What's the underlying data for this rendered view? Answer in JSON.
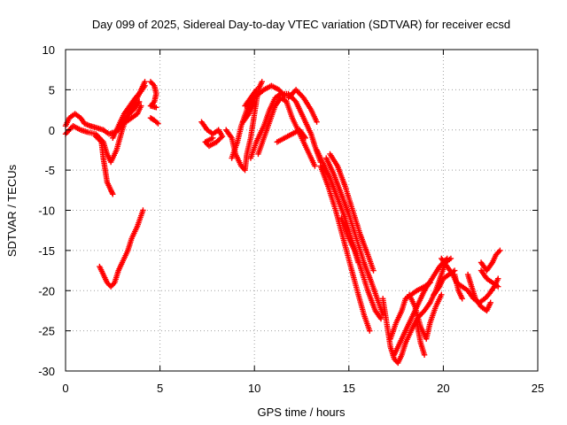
{
  "chart_data": {
    "type": "scatter",
    "title": "Day 099 of 2025, Sidereal Day-to-day VTEC variation (SDTVAR) for receiver ecsd",
    "xlabel": "GPS time / hours",
    "ylabel": "SDTVAR / TECUs",
    "xlim": [
      0,
      25
    ],
    "ylim": [
      -30,
      10
    ],
    "xticks": [
      0,
      5,
      10,
      15,
      20,
      25
    ],
    "yticks": [
      -30,
      -25,
      -20,
      -15,
      -10,
      -5,
      0,
      5,
      10
    ],
    "grid": true,
    "marker": "+",
    "color": "#ff0000",
    "tracks": [
      [
        [
          0.0,
          0.5
        ],
        [
          0.2,
          1.5
        ],
        [
          0.5,
          2.0
        ],
        [
          0.8,
          1.5
        ],
        [
          1.0,
          0.8
        ],
        [
          1.3,
          0.5
        ],
        [
          1.6,
          0.3
        ],
        [
          2.0,
          0.0
        ],
        [
          2.3,
          -0.5
        ],
        [
          2.6,
          -0.3
        ],
        [
          3.0,
          0.5
        ]
      ],
      [
        [
          0.0,
          -0.5
        ],
        [
          0.4,
          0.5
        ],
        [
          0.8,
          0.0
        ],
        [
          1.2,
          -0.3
        ],
        [
          1.6,
          -0.5
        ],
        [
          2.0,
          -1.5
        ],
        [
          2.2,
          -3.0
        ],
        [
          2.4,
          -4.0
        ],
        [
          2.7,
          -2.5
        ],
        [
          3.0,
          0.0
        ],
        [
          3.3,
          2.0
        ],
        [
          3.7,
          3.5
        ],
        [
          4.0,
          5.0
        ],
        [
          4.2,
          6.0
        ]
      ],
      [
        [
          1.6,
          -0.8
        ],
        [
          1.9,
          -1.5
        ],
        [
          2.0,
          -3.5
        ],
        [
          2.1,
          -5.0
        ],
        [
          2.2,
          -6.5
        ],
        [
          2.4,
          -7.5
        ],
        [
          2.5,
          -8.0
        ]
      ],
      [
        [
          2.5,
          -1.0
        ],
        [
          2.8,
          0.5
        ],
        [
          3.1,
          2.0
        ],
        [
          3.4,
          3.0
        ],
        [
          3.7,
          4.0
        ],
        [
          4.0,
          4.8
        ],
        [
          4.2,
          5.5
        ]
      ],
      [
        [
          2.8,
          0.0
        ],
        [
          3.0,
          1.0
        ],
        [
          3.3,
          1.8
        ],
        [
          3.6,
          2.5
        ],
        [
          3.9,
          3.5
        ]
      ],
      [
        [
          3.2,
          1.0
        ],
        [
          3.5,
          1.5
        ],
        [
          3.8,
          2.0
        ],
        [
          4.0,
          3.0
        ]
      ],
      [
        [
          1.8,
          -17.0
        ],
        [
          2.0,
          -18.0
        ],
        [
          2.2,
          -19.0
        ],
        [
          2.4,
          -19.5
        ],
        [
          2.6,
          -19.0
        ],
        [
          2.8,
          -17.5
        ],
        [
          3.0,
          -16.5
        ],
        [
          3.3,
          -15.0
        ],
        [
          3.5,
          -13.5
        ],
        [
          3.8,
          -12.0
        ],
        [
          4.1,
          -10.0
        ]
      ],
      [
        [
          4.5,
          6.0
        ],
        [
          4.7,
          5.5
        ],
        [
          4.8,
          4.5
        ],
        [
          4.7,
          3.5
        ],
        [
          4.5,
          3.0
        ],
        [
          4.8,
          2.8
        ]
      ],
      [
        [
          4.5,
          1.5
        ],
        [
          4.7,
          1.2
        ],
        [
          4.9,
          0.8
        ]
      ],
      [
        [
          7.2,
          1.0
        ],
        [
          7.5,
          0.0
        ],
        [
          7.8,
          -0.5
        ],
        [
          8.1,
          0.0
        ],
        [
          8.3,
          -0.8
        ],
        [
          8.0,
          -1.5
        ],
        [
          7.6,
          -2.0
        ],
        [
          7.4,
          -1.5
        ],
        [
          7.8,
          -1.0
        ]
      ],
      [
        [
          8.5,
          0.0
        ],
        [
          8.8,
          -1.0
        ],
        [
          9.0,
          -3.0
        ],
        [
          9.3,
          -4.5
        ],
        [
          9.5,
          -5.0
        ],
        [
          9.6,
          -3.0
        ],
        [
          9.8,
          -1.0
        ],
        [
          10.0,
          2.0
        ],
        [
          10.2,
          5.0
        ],
        [
          10.4,
          6.0
        ]
      ],
      [
        [
          8.8,
          -3.5
        ],
        [
          9.1,
          -1.5
        ],
        [
          9.3,
          0.5
        ],
        [
          9.6,
          2.5
        ],
        [
          10.0,
          4.0
        ],
        [
          10.5,
          5.0
        ],
        [
          10.9,
          5.5
        ],
        [
          11.3,
          5.0
        ],
        [
          11.6,
          4.2
        ]
      ],
      [
        [
          9.5,
          3.0
        ],
        [
          9.8,
          4.0
        ],
        [
          10.1,
          5.0
        ]
      ],
      [
        [
          9.4,
          1.0
        ],
        [
          9.7,
          2.0
        ],
        [
          10.0,
          3.5
        ]
      ],
      [
        [
          9.8,
          -3.5
        ],
        [
          10.1,
          -1.5
        ],
        [
          10.5,
          0.5
        ],
        [
          10.8,
          2.5
        ],
        [
          11.1,
          4.0
        ],
        [
          11.4,
          4.5
        ],
        [
          11.8,
          4.5
        ],
        [
          12.2,
          3.5
        ],
        [
          12.6,
          1.5
        ],
        [
          13.0,
          -0.5
        ],
        [
          13.2,
          -2.0
        ],
        [
          13.5,
          -4.0
        ]
      ],
      [
        [
          10.2,
          -3.0
        ],
        [
          10.5,
          -1.0
        ],
        [
          10.8,
          1.0
        ],
        [
          11.1,
          3.0
        ],
        [
          11.4,
          4.0
        ],
        [
          11.7,
          3.5
        ],
        [
          12.0,
          1.5
        ],
        [
          12.3,
          0.0
        ],
        [
          12.6,
          -1.5
        ],
        [
          12.9,
          -3.0
        ],
        [
          13.2,
          -4.5
        ]
      ],
      [
        [
          11.2,
          -1.5
        ],
        [
          11.6,
          -1.0
        ],
        [
          12.0,
          -0.5
        ],
        [
          12.4,
          0.0
        ],
        [
          12.7,
          -1.0
        ]
      ],
      [
        [
          11.8,
          4.0
        ],
        [
          12.2,
          5.0
        ],
        [
          12.6,
          4.0
        ],
        [
          13.0,
          2.5
        ],
        [
          13.3,
          1.0
        ]
      ],
      [
        [
          13.3,
          -2.5
        ],
        [
          13.6,
          -4.0
        ],
        [
          14.0,
          -6.0
        ],
        [
          14.4,
          -8.5
        ],
        [
          14.8,
          -11.0
        ],
        [
          15.2,
          -14.0
        ],
        [
          15.6,
          -17.0
        ],
        [
          16.0,
          -20.0
        ],
        [
          16.4,
          -22.5
        ],
        [
          16.7,
          -23.5
        ]
      ],
      [
        [
          13.5,
          -4.5
        ],
        [
          13.9,
          -7.0
        ],
        [
          14.3,
          -10.0
        ],
        [
          14.7,
          -13.5
        ],
        [
          15.1,
          -17.0
        ],
        [
          15.5,
          -20.5
        ],
        [
          15.8,
          -23.0
        ],
        [
          16.1,
          -25.0
        ]
      ],
      [
        [
          13.8,
          -3.5
        ],
        [
          14.2,
          -5.5
        ],
        [
          14.6,
          -8.0
        ],
        [
          15.0,
          -10.5
        ],
        [
          15.4,
          -13.5
        ],
        [
          15.8,
          -16.5
        ],
        [
          16.2,
          -19.0
        ],
        [
          16.5,
          -21.0
        ],
        [
          16.8,
          -23.0
        ]
      ],
      [
        [
          14.0,
          -3.0
        ],
        [
          14.4,
          -4.5
        ],
        [
          14.8,
          -7.0
        ],
        [
          15.2,
          -10.0
        ],
        [
          15.6,
          -13.0
        ],
        [
          16.0,
          -15.5
        ],
        [
          16.3,
          -17.5
        ]
      ],
      [
        [
          14.6,
          -11.0
        ],
        [
          15.0,
          -13.5
        ],
        [
          15.3,
          -15.0
        ],
        [
          15.5,
          -16.5
        ]
      ],
      [
        [
          16.8,
          -21.0
        ],
        [
          17.0,
          -24.0
        ],
        [
          17.2,
          -27.0
        ],
        [
          17.4,
          -28.5
        ],
        [
          17.6,
          -29.0
        ],
        [
          17.8,
          -28.0
        ],
        [
          18.0,
          -26.5
        ],
        [
          18.3,
          -25.0
        ],
        [
          18.6,
          -23.5
        ],
        [
          19.0,
          -22.5
        ],
        [
          19.3,
          -21.5
        ],
        [
          19.6,
          -20.0
        ],
        [
          19.9,
          -18.0
        ],
        [
          20.1,
          -16.5
        ],
        [
          20.4,
          -16.0
        ]
      ],
      [
        [
          17.2,
          -26.0
        ],
        [
          17.5,
          -24.0
        ],
        [
          17.8,
          -22.5
        ],
        [
          18.0,
          -21.0
        ],
        [
          18.3,
          -20.5
        ],
        [
          18.6,
          -20.0
        ],
        [
          19.0,
          -19.5
        ],
        [
          19.3,
          -19.0
        ]
      ],
      [
        [
          17.4,
          -28.0
        ],
        [
          17.8,
          -26.0
        ],
        [
          18.2,
          -24.0
        ],
        [
          18.6,
          -22.0
        ],
        [
          19.0,
          -20.0
        ],
        [
          19.4,
          -18.5
        ],
        [
          19.8,
          -17.0
        ],
        [
          20.2,
          -16.0
        ]
      ],
      [
        [
          18.2,
          -20.5
        ],
        [
          18.5,
          -22.0
        ],
        [
          18.8,
          -24.5
        ],
        [
          19.1,
          -26.0
        ],
        [
          19.3,
          -24.0
        ],
        [
          19.6,
          -22.0
        ],
        [
          19.9,
          -20.5
        ]
      ],
      [
        [
          18.6,
          -24.0
        ],
        [
          18.8,
          -26.5
        ],
        [
          19.0,
          -28.0
        ]
      ],
      [
        [
          19.5,
          -20.5
        ],
        [
          19.8,
          -19.5
        ],
        [
          20.0,
          -18.5
        ],
        [
          20.3,
          -18.0
        ],
        [
          20.6,
          -17.5
        ]
      ],
      [
        [
          19.9,
          -16.0
        ],
        [
          20.2,
          -17.0
        ],
        [
          20.5,
          -18.0
        ],
        [
          20.7,
          -19.0
        ],
        [
          21.0,
          -19.5
        ],
        [
          21.3,
          -20.0
        ],
        [
          21.6,
          -21.0
        ],
        [
          21.9,
          -21.5
        ],
        [
          22.2,
          -21.0
        ],
        [
          22.4,
          -20.5
        ],
        [
          22.7,
          -19.5
        ],
        [
          22.9,
          -18.5
        ]
      ],
      [
        [
          20.6,
          -18.0
        ],
        [
          20.8,
          -20.0
        ],
        [
          21.0,
          -21.0
        ]
      ],
      [
        [
          21.3,
          -18.0
        ],
        [
          21.5,
          -19.5
        ],
        [
          21.7,
          -21.0
        ],
        [
          22.0,
          -22.0
        ],
        [
          22.3,
          -22.5
        ],
        [
          22.5,
          -21.5
        ]
      ],
      [
        [
          22.0,
          -17.5
        ],
        [
          22.3,
          -18.5
        ],
        [
          22.6,
          -19.0
        ],
        [
          22.9,
          -19.5
        ]
      ],
      [
        [
          22.0,
          -16.5
        ],
        [
          22.3,
          -17.5
        ],
        [
          22.6,
          -16.5
        ],
        [
          22.8,
          -15.5
        ],
        [
          23.0,
          -15.0
        ]
      ]
    ]
  }
}
